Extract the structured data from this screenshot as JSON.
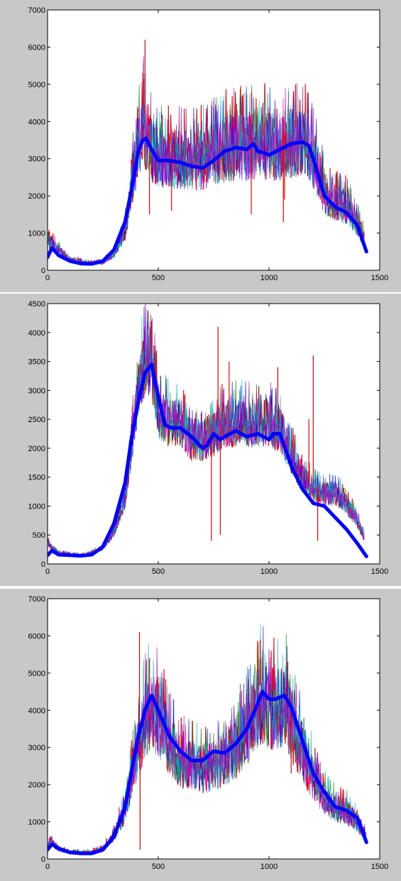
{
  "colors": {
    "figure_background": "#c8c8c8",
    "axes_background": "#ffffff",
    "axis": "#000000",
    "noise_series": [
      "#ff0000",
      "#008000",
      "#0000ff",
      "#00bfbf",
      "#bf00bf"
    ],
    "smooth_series": "#0000ff"
  },
  "chart_data": [
    {
      "type": "line",
      "title": "",
      "xlabel": "",
      "ylabel": "",
      "xlim": [
        0,
        1500
      ],
      "ylim": [
        0,
        7000
      ],
      "xticks": [
        "0",
        "500",
        "1000",
        "1500"
      ],
      "yticks": [
        "0",
        "1000",
        "2000",
        "3000",
        "4000",
        "5000",
        "6000",
        "7000"
      ],
      "grid": false,
      "legend": "none",
      "noise": {
        "x": [
          0,
          20,
          50,
          100,
          150,
          200,
          250,
          300,
          350,
          380,
          410,
          430,
          450,
          470,
          500,
          550,
          600,
          650,
          700,
          750,
          800,
          850,
          900,
          950,
          1000,
          1050,
          1100,
          1150,
          1190,
          1250,
          1300,
          1350,
          1400,
          1430
        ],
        "y": [
          900,
          800,
          600,
          300,
          250,
          200,
          250,
          500,
          1200,
          2500,
          3800,
          4400,
          4000,
          3600,
          3400,
          3400,
          3300,
          3300,
          3300,
          3500,
          3600,
          3700,
          3700,
          3800,
          3700,
          3700,
          3800,
          3900,
          3600,
          2300,
          2000,
          1900,
          1400,
          900
        ],
        "spikes": [
          [
            440,
            6200
          ],
          [
            430,
            5300
          ],
          [
            460,
            1500
          ],
          [
            560,
            1600
          ],
          [
            920,
            1500
          ],
          [
            1065,
            1300
          ],
          [
            1070,
            1900
          ],
          [
            880,
            4700
          ],
          [
            1120,
            5000
          ]
        ],
        "amplitude_scale": 1
      },
      "smooth": {
        "x": [
          0,
          20,
          50,
          100,
          150,
          200,
          250,
          300,
          350,
          380,
          410,
          430,
          445,
          470,
          500,
          550,
          600,
          650,
          700,
          750,
          800,
          850,
          900,
          930,
          950,
          980,
          1000,
          1050,
          1100,
          1150,
          1180,
          1200,
          1250,
          1300,
          1350,
          1400,
          1440
        ],
        "y": [
          350,
          600,
          400,
          250,
          180,
          170,
          250,
          550,
          1300,
          2200,
          3200,
          3500,
          3550,
          3250,
          2950,
          2950,
          2900,
          2800,
          2750,
          2950,
          3200,
          3300,
          3250,
          3400,
          3200,
          3150,
          3100,
          3250,
          3400,
          3450,
          3350,
          3000,
          2000,
          1700,
          1550,
          1200,
          500
        ]
      }
    },
    {
      "type": "line",
      "title": "",
      "xlabel": "",
      "ylabel": "",
      "xlim": [
        0,
        1500
      ],
      "ylim": [
        0,
        4500
      ],
      "xticks": [
        "0",
        "500",
        "1000",
        "1500"
      ],
      "yticks": [
        "0",
        "500",
        "1000",
        "1500",
        "2000",
        "2500",
        "3000",
        "3500",
        "4000",
        "4500"
      ],
      "grid": false,
      "legend": "none",
      "noise": {
        "x": [
          0,
          20,
          50,
          100,
          150,
          200,
          250,
          300,
          350,
          380,
          410,
          440,
          460,
          480,
          500,
          550,
          600,
          650,
          700,
          750,
          800,
          850,
          900,
          950,
          1000,
          1050,
          1100,
          1150,
          1200,
          1250,
          1300,
          1350,
          1400,
          1430
        ],
        "y": [
          400,
          300,
          200,
          180,
          160,
          200,
          300,
          600,
          1200,
          2200,
          3200,
          3800,
          3700,
          3500,
          2800,
          2600,
          2600,
          2300,
          2300,
          2400,
          2600,
          2600,
          2600,
          2600,
          2600,
          2500,
          2000,
          1600,
          1400,
          1300,
          1300,
          1100,
          800,
          500
        ],
        "spikes": [
          [
            470,
            4200
          ],
          [
            740,
            400
          ],
          [
            770,
            4100
          ],
          [
            780,
            500
          ],
          [
            820,
            3500
          ],
          [
            1040,
            3400
          ],
          [
            1200,
            3600
          ],
          [
            1220,
            400
          ],
          [
            1180,
            2500
          ]
        ],
        "amplitude_scale": 0.65
      },
      "smooth": {
        "x": [
          0,
          20,
          50,
          100,
          150,
          200,
          250,
          300,
          350,
          380,
          410,
          440,
          470,
          500,
          530,
          560,
          600,
          650,
          700,
          720,
          750,
          780,
          800,
          850,
          900,
          950,
          1000,
          1020,
          1050,
          1100,
          1150,
          1200,
          1250,
          1300,
          1350,
          1400,
          1440
        ],
        "y": [
          150,
          230,
          160,
          150,
          140,
          160,
          300,
          700,
          1400,
          2200,
          2800,
          3300,
          3450,
          2900,
          2400,
          2350,
          2350,
          2200,
          2000,
          2050,
          2250,
          2150,
          2200,
          2300,
          2200,
          2250,
          2150,
          2250,
          2250,
          1700,
          1300,
          1050,
          1000,
          800,
          600,
          350,
          130
        ]
      }
    },
    {
      "type": "line",
      "title": "",
      "xlabel": "",
      "ylabel": "",
      "xlim": [
        0,
        1500
      ],
      "ylim": [
        0,
        7000
      ],
      "xticks": [
        "0",
        "500",
        "1000",
        "1500"
      ],
      "yticks": [
        "0",
        "1000",
        "2000",
        "3000",
        "4000",
        "5000",
        "6000",
        "7000"
      ],
      "grid": false,
      "legend": "none",
      "noise": {
        "x": [
          0,
          20,
          50,
          100,
          150,
          200,
          250,
          300,
          350,
          380,
          410,
          440,
          470,
          500,
          550,
          600,
          650,
          700,
          750,
          800,
          850,
          900,
          950,
          980,
          1000,
          1050,
          1080,
          1100,
          1150,
          1200,
          1250,
          1300,
          1350,
          1400,
          1440
        ],
        "y": [
          400,
          500,
          300,
          200,
          200,
          200,
          300,
          700,
          1500,
          2500,
          3300,
          4200,
          4500,
          4200,
          3400,
          2900,
          2800,
          2700,
          2800,
          3000,
          3300,
          3800,
          4600,
          4800,
          4500,
          4500,
          4500,
          4000,
          3200,
          2400,
          1800,
          1500,
          1400,
          1100,
          600
        ],
        "spikes": [
          [
            415,
            6100
          ],
          [
            418,
            250
          ],
          [
            460,
            5400
          ],
          [
            960,
            5900
          ],
          [
            1010,
            5600
          ],
          [
            1085,
            5300
          ],
          [
            1100,
            2300
          ]
        ],
        "amplitude_scale": 1
      },
      "smooth": {
        "x": [
          0,
          20,
          50,
          100,
          150,
          200,
          250,
          300,
          350,
          380,
          410,
          440,
          470,
          500,
          550,
          600,
          650,
          700,
          750,
          800,
          850,
          900,
          950,
          970,
          1000,
          1030,
          1070,
          1100,
          1150,
          1200,
          1250,
          1300,
          1350,
          1400,
          1440
        ],
        "y": [
          250,
          400,
          280,
          180,
          150,
          150,
          250,
          600,
          1400,
          2400,
          3300,
          4000,
          4400,
          4000,
          3300,
          2900,
          2650,
          2650,
          2900,
          2850,
          3100,
          3500,
          4200,
          4500,
          4300,
          4300,
          4400,
          4100,
          3200,
          2300,
          1800,
          1400,
          1300,
          1100,
          450
        ]
      }
    }
  ]
}
